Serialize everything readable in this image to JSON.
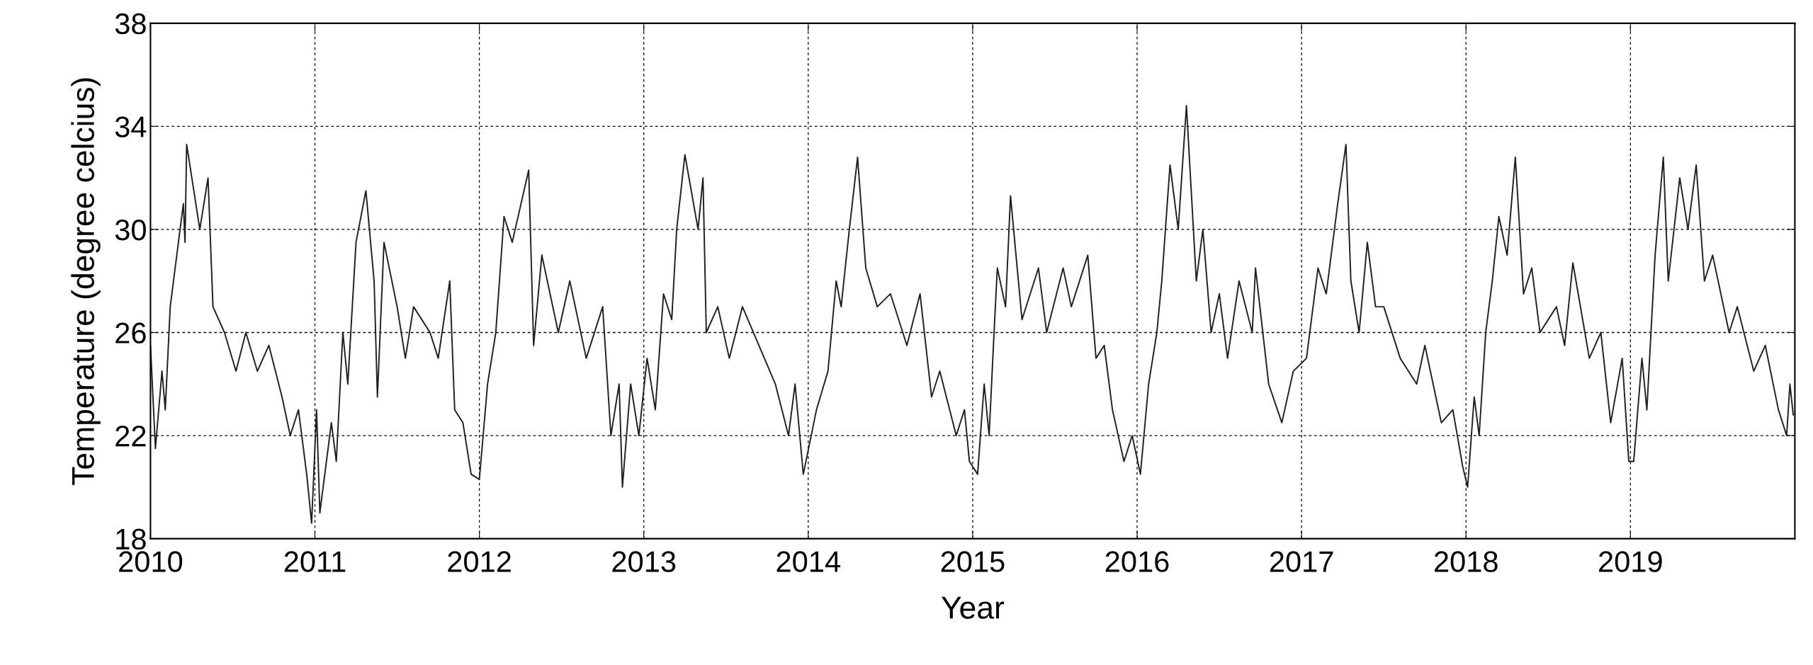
{
  "chart_data": {
    "type": "line",
    "xlabel": "Year",
    "ylabel": "Temperature (degree celcius)",
    "xlim": [
      2010,
      2020
    ],
    "xticks": [
      2010,
      2011,
      2012,
      2013,
      2014,
      2015,
      2016,
      2017,
      2018,
      2019
    ],
    "ylim": [
      18,
      38
    ],
    "yticks": [
      18,
      22,
      26,
      30,
      34,
      38
    ],
    "grid": true,
    "marker": "none",
    "line_style": "solid",
    "series": [
      {
        "color": "#231f20",
        "x": [
          2010.0,
          2010.03,
          2010.07,
          2010.09,
          2010.12,
          2010.17,
          2010.2,
          2010.21,
          2010.22,
          2010.3,
          2010.35,
          2010.38,
          2010.45,
          2010.52,
          2010.58,
          2010.65,
          2010.72,
          2010.8,
          2010.85,
          2010.9,
          2010.95,
          2010.98,
          2011.01,
          2011.03,
          2011.1,
          2011.13,
          2011.17,
          2011.2,
          2011.25,
          2011.31,
          2011.36,
          2011.38,
          2011.42,
          2011.5,
          2011.55,
          2011.6,
          2011.7,
          2011.75,
          2011.82,
          2011.85,
          2011.9,
          2011.95,
          2012.0,
          2012.05,
          2012.1,
          2012.15,
          2012.2,
          2012.3,
          2012.33,
          2012.38,
          2012.48,
          2012.55,
          2012.65,
          2012.75,
          2012.8,
          2012.85,
          2012.87,
          2012.92,
          2012.97,
          2013.02,
          2013.07,
          2013.12,
          2013.17,
          2013.2,
          2013.25,
          2013.33,
          2013.36,
          2013.38,
          2013.45,
          2013.52,
          2013.6,
          2013.7,
          2013.8,
          2013.88,
          2013.92,
          2013.97,
          2014.05,
          2014.12,
          2014.17,
          2014.2,
          2014.25,
          2014.3,
          2014.35,
          2014.42,
          2014.5,
          2014.6,
          2014.68,
          2014.75,
          2014.8,
          2014.9,
          2014.95,
          2014.98,
          2015.03,
          2015.07,
          2015.1,
          2015.13,
          2015.15,
          2015.2,
          2015.23,
          2015.3,
          2015.4,
          2015.45,
          2015.55,
          2015.6,
          2015.7,
          2015.75,
          2015.8,
          2015.85,
          2015.92,
          2015.97,
          2016.02,
          2016.07,
          2016.12,
          2016.15,
          2016.2,
          2016.25,
          2016.3,
          2016.36,
          2016.4,
          2016.45,
          2016.5,
          2016.55,
          2016.62,
          2016.7,
          2016.72,
          2016.8,
          2016.88,
          2016.95,
          2017.03,
          2017.1,
          2017.15,
          2017.22,
          2017.27,
          2017.3,
          2017.35,
          2017.4,
          2017.45,
          2017.5,
          2017.6,
          2017.7,
          2017.75,
          2017.85,
          2017.92,
          2017.98,
          2018.01,
          2018.05,
          2018.08,
          2018.12,
          2018.16,
          2018.2,
          2018.25,
          2018.3,
          2018.35,
          2018.4,
          2018.45,
          2018.55,
          2018.6,
          2018.65,
          2018.75,
          2018.82,
          2018.88,
          2018.95,
          2018.99,
          2019.02,
          2019.07,
          2019.1,
          2019.15,
          2019.2,
          2019.23,
          2019.3,
          2019.35,
          2019.4,
          2019.45,
          2019.5,
          2019.6,
          2019.65,
          2019.75,
          2019.82,
          2019.9,
          2019.95,
          2019.97,
          2019.99
        ],
        "values": [
          25.5,
          21.5,
          24.5,
          23,
          27,
          29.5,
          31,
          29.5,
          33.3,
          30,
          32,
          27,
          26,
          24.5,
          26,
          24.5,
          25.5,
          23.5,
          22,
          23,
          20.5,
          18.6,
          23,
          19,
          22.5,
          21,
          26,
          24,
          29.5,
          31.5,
          28,
          23.5,
          29.5,
          27,
          25,
          27,
          26,
          25,
          28,
          23,
          22.5,
          20.5,
          20.3,
          24,
          26,
          30.5,
          29.5,
          32.3,
          25.5,
          29,
          26,
          28,
          25,
          27,
          22,
          24,
          20,
          24,
          22,
          25,
          23,
          27.5,
          26.5,
          30,
          32.9,
          30,
          32,
          26,
          27,
          25,
          27,
          25.5,
          24,
          22,
          24,
          20.5,
          23,
          24.5,
          28,
          27,
          30,
          32.8,
          28.5,
          27,
          27.5,
          25.5,
          27.5,
          23.5,
          24.5,
          22,
          23,
          21,
          20.5,
          24,
          22,
          26,
          28.5,
          27,
          31.3,
          26.5,
          28.5,
          26,
          28.5,
          27,
          29,
          25,
          25.5,
          23,
          21,
          22,
          20.5,
          24,
          26,
          28,
          32.5,
          30,
          34.8,
          28,
          30,
          26,
          27.5,
          25,
          28,
          26,
          28.5,
          24,
          22.5,
          24.5,
          25,
          28.5,
          27.5,
          31,
          33.3,
          28,
          26,
          29.5,
          27,
          27,
          25,
          24,
          25.5,
          22.5,
          23,
          20.8,
          20,
          23.5,
          22,
          26,
          28,
          30.5,
          29,
          32.8,
          27.5,
          28.5,
          26,
          27,
          25.5,
          28.7,
          25,
          26,
          22.5,
          25,
          21,
          21,
          25,
          23,
          29,
          32.8,
          28,
          32,
          30,
          32.5,
          28,
          29,
          26,
          27,
          24.5,
          25.5,
          23,
          22,
          24,
          22.8
        ]
      }
    ]
  }
}
